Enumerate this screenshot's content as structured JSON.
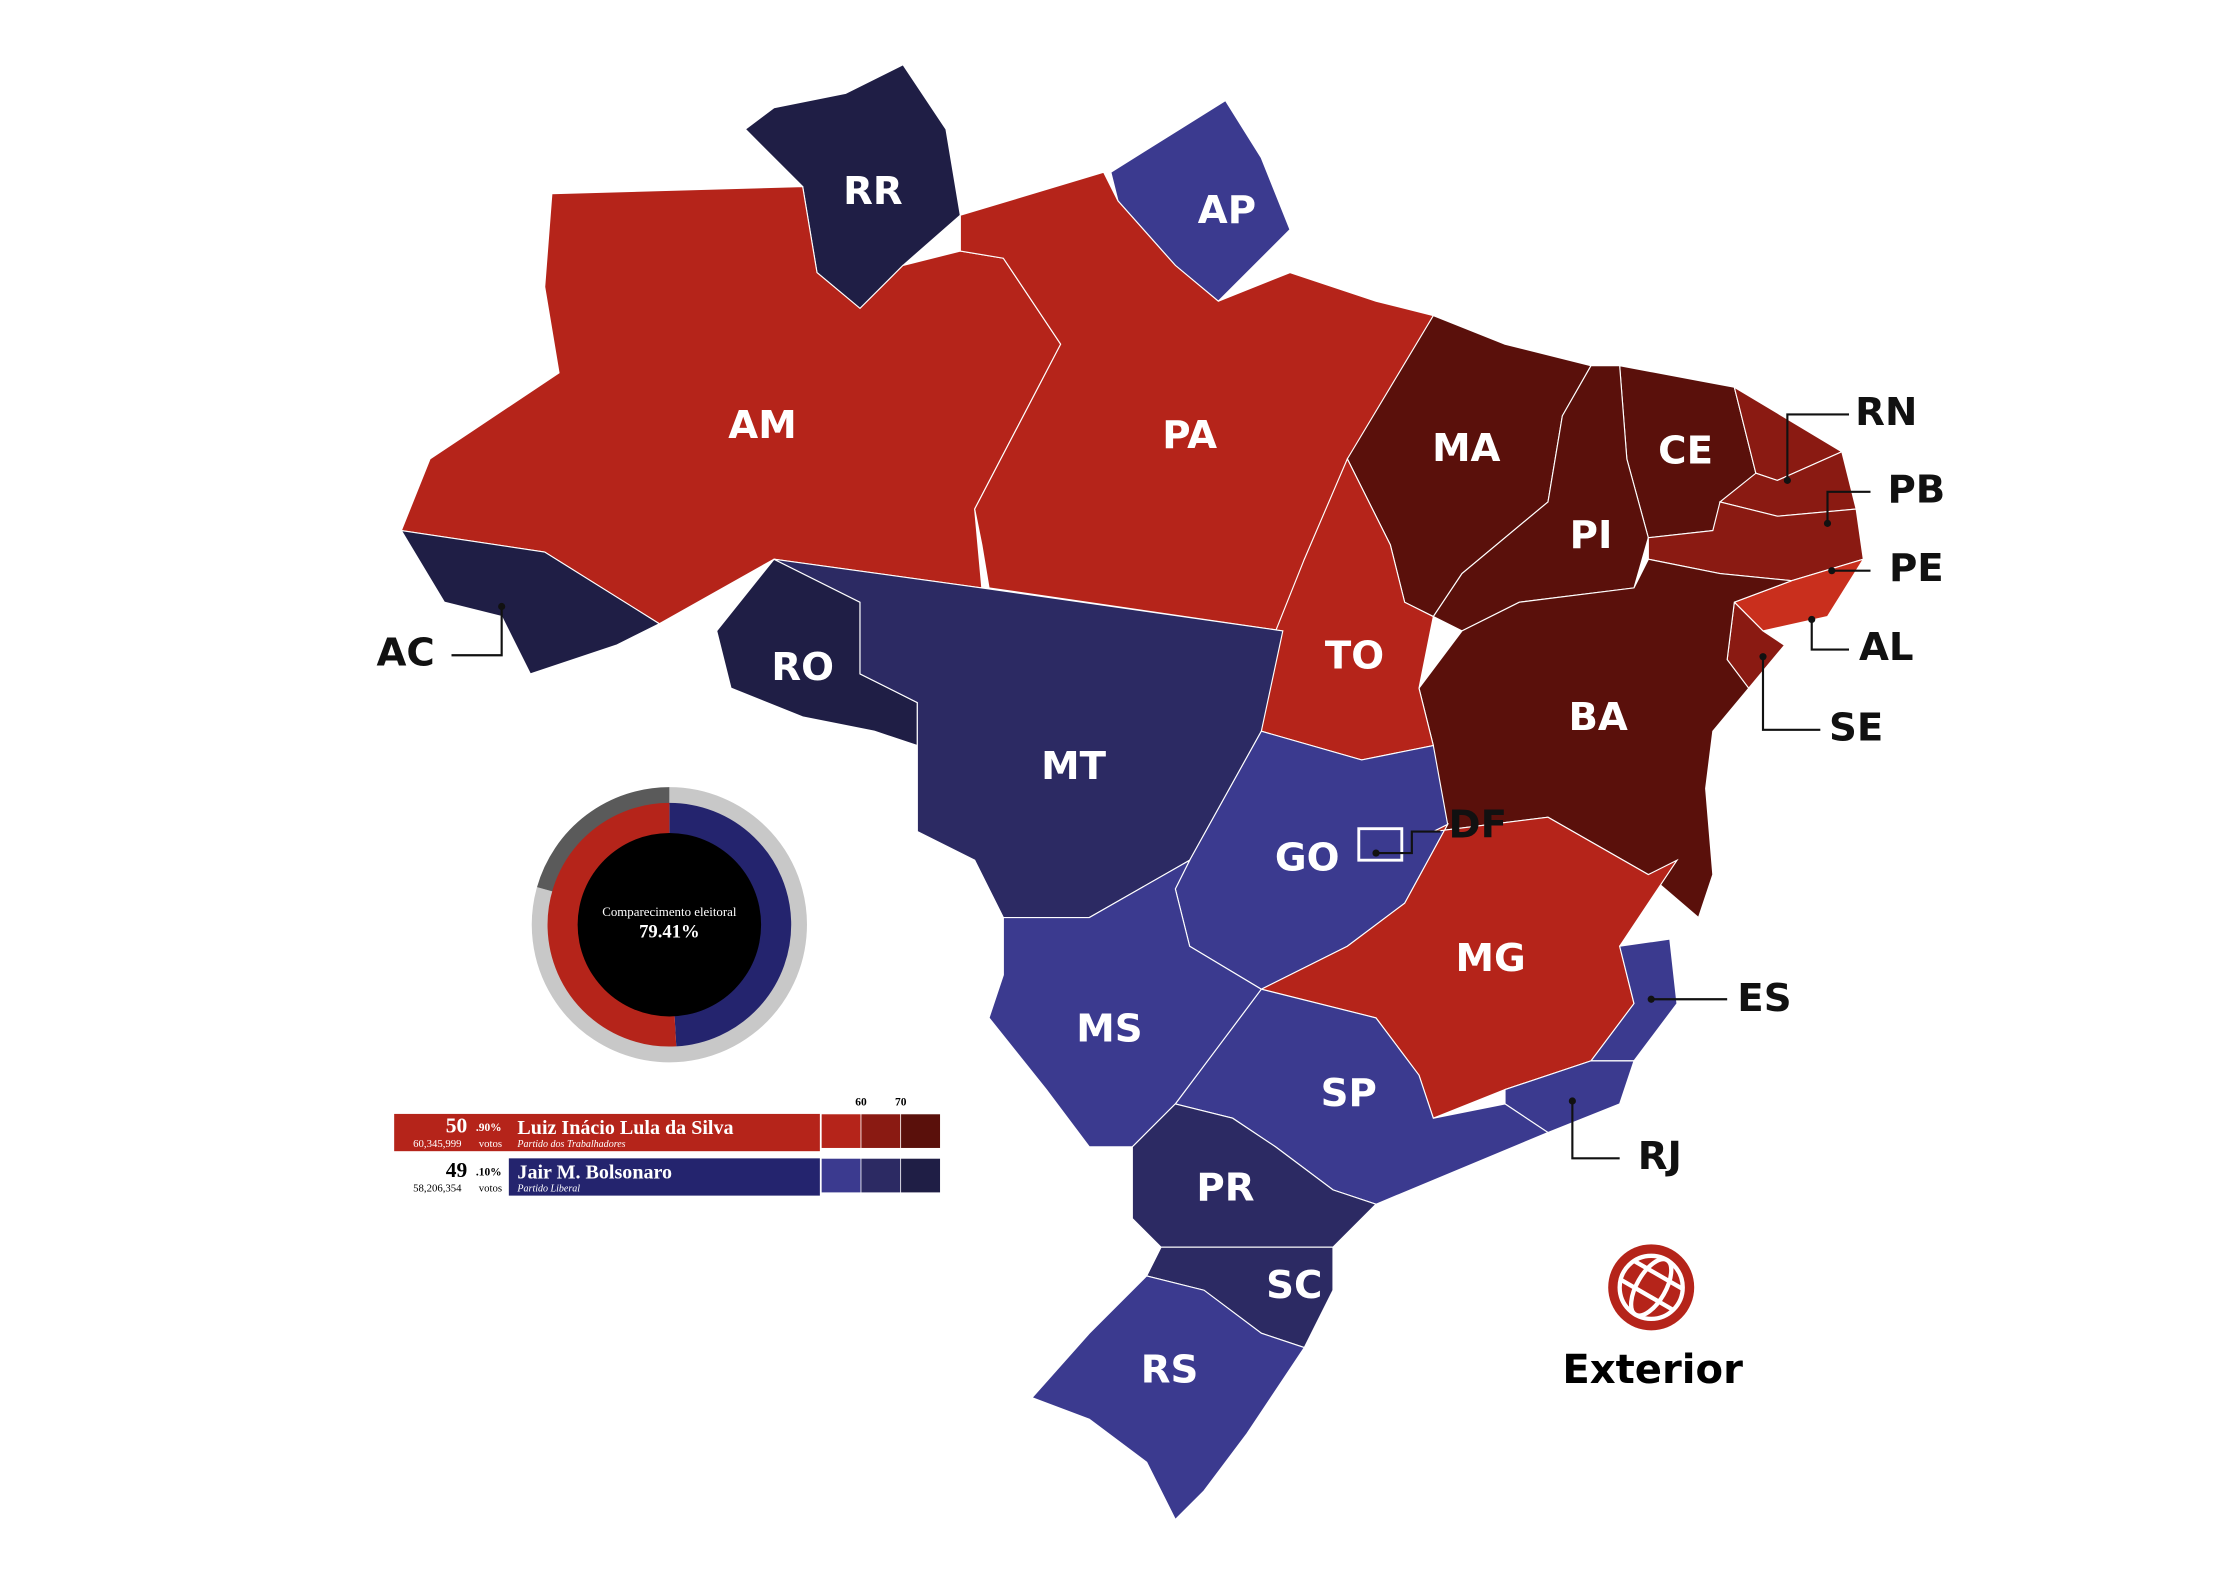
{
  "states": [
    {
      "code": "RR",
      "color": "#1f1e45"
    },
    {
      "code": "AP",
      "color": "#3b3a8f"
    },
    {
      "code": "AM",
      "color": "#b5241a"
    },
    {
      "code": "PA",
      "color": "#b5241a"
    },
    {
      "code": "MA",
      "color": "#5a100b"
    },
    {
      "code": "CE",
      "color": "#5a100b"
    },
    {
      "code": "PI",
      "color": "#5a100b"
    },
    {
      "code": "RN",
      "color": "#8a1a12"
    },
    {
      "code": "PB",
      "color": "#8a1a12"
    },
    {
      "code": "PE",
      "color": "#8a1a12"
    },
    {
      "code": "AL",
      "color": "#c92f1d"
    },
    {
      "code": "SE",
      "color": "#8a1a12"
    },
    {
      "code": "BA",
      "color": "#5a100b"
    },
    {
      "code": "TO",
      "color": "#b5241a"
    },
    {
      "code": "AC",
      "color": "#1f1e45"
    },
    {
      "code": "RO",
      "color": "#1f1e45"
    },
    {
      "code": "MT",
      "color": "#2c2a63"
    },
    {
      "code": "GO",
      "color": "#3b3a8f"
    },
    {
      "code": "DF",
      "color": "#3b3a8f"
    },
    {
      "code": "MG",
      "color": "#b5241a"
    },
    {
      "code": "ES",
      "color": "#3b3a8f"
    },
    {
      "code": "RJ",
      "color": "#3b3a8f"
    },
    {
      "code": "SP",
      "color": "#3b3a8f"
    },
    {
      "code": "MS",
      "color": "#3b3a8f"
    },
    {
      "code": "PR",
      "color": "#2c2a63"
    },
    {
      "code": "SC",
      "color": "#2c2a63"
    },
    {
      "code": "RS",
      "color": "#3b3a8f"
    }
  ],
  "turnout": {
    "label": "Comparecimento eleitoral",
    "value": 79.41,
    "value_label": "79.41%"
  },
  "candidates": [
    {
      "pct_int": "50",
      "pct_dec": ".90%",
      "name": "Luiz Inácio Lula da Silva",
      "votes": {
        "value": 60345999,
        "label": "60,345,999"
      },
      "votes_unit": "votos",
      "party": "Partido dos Trabalhadores",
      "color": "#b5241a",
      "scale_colors": [
        "#b5241a",
        "#8a1a12",
        "#5a100b"
      ]
    },
    {
      "pct_int": "49",
      "pct_dec": ".10%",
      "name": "Jair M. Bolsonaro",
      "votes": {
        "value": 58206354,
        "label": "58,206,354"
      },
      "votes_unit": "votos",
      "party": "Partido Liberal",
      "color": "#24246e",
      "scale_colors": [
        "#3b3a8f",
        "#2c2a63",
        "#1f1e45"
      ]
    }
  ],
  "legend_ticks": [
    60,
    70
  ],
  "exterior": "Exterior"
}
